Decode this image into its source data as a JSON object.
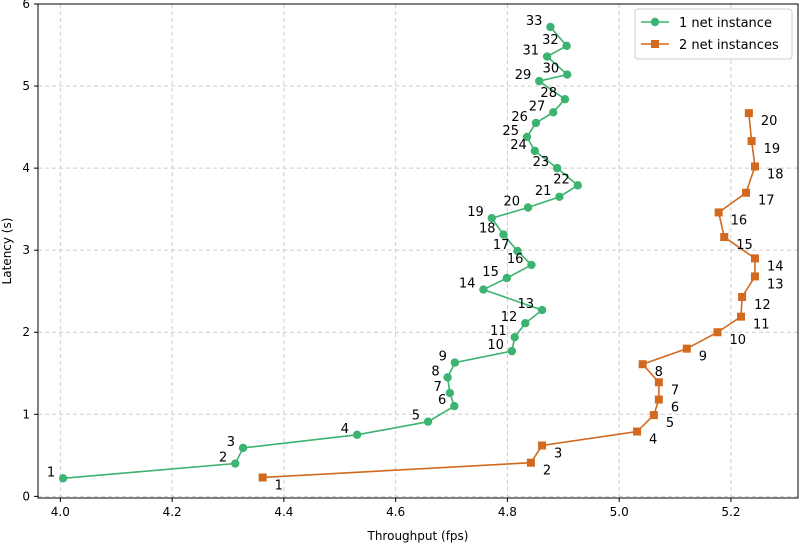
{
  "chart_data": {
    "type": "line",
    "title": "",
    "xlabel": "Throughput (fps)",
    "ylabel": "Latency (s)",
    "xlim": [
      3.96,
      5.32
    ],
    "ylim": [
      -0.02,
      6.0
    ],
    "xticks": [
      4.0,
      4.2,
      4.4,
      4.6,
      4.8,
      5.0,
      5.2
    ],
    "xtick_labels": [
      "4.0",
      "4.2",
      "4.4",
      "4.6",
      "4.8",
      "5.0",
      "5.2"
    ],
    "yticks": [
      0,
      1,
      2,
      3,
      4,
      5,
      6
    ],
    "ytick_labels": [
      "0",
      "1",
      "2",
      "3",
      "4",
      "5",
      "6"
    ],
    "grid": true,
    "legend_position": "top-right",
    "series": [
      {
        "name": "1 net instance",
        "color": "#3cb371",
        "marker": "circle",
        "points": [
          {
            "label": "1",
            "x": 4.005,
            "y": 0.22,
            "label_side": "left"
          },
          {
            "label": "2",
            "x": 4.313,
            "y": 0.4,
            "label_side": "left"
          },
          {
            "label": "3",
            "x": 4.327,
            "y": 0.59,
            "label_side": "left"
          },
          {
            "label": "4",
            "x": 4.531,
            "y": 0.75,
            "label_side": "left"
          },
          {
            "label": "5",
            "x": 4.658,
            "y": 0.91,
            "label_side": "left"
          },
          {
            "label": "6",
            "x": 4.705,
            "y": 1.1,
            "label_side": "left"
          },
          {
            "label": "7",
            "x": 4.697,
            "y": 1.26,
            "label_side": "left"
          },
          {
            "label": "8",
            "x": 4.693,
            "y": 1.45,
            "label_side": "left"
          },
          {
            "label": "9",
            "x": 4.706,
            "y": 1.63,
            "label_side": "left"
          },
          {
            "label": "10",
            "x": 4.808,
            "y": 1.77,
            "label_side": "left"
          },
          {
            "label": "11",
            "x": 4.813,
            "y": 1.94,
            "label_side": "left"
          },
          {
            "label": "12",
            "x": 4.832,
            "y": 2.11,
            "label_side": "left"
          },
          {
            "label": "13",
            "x": 4.862,
            "y": 2.27,
            "label_side": "left"
          },
          {
            "label": "14",
            "x": 4.757,
            "y": 2.52,
            "label_side": "left"
          },
          {
            "label": "15",
            "x": 4.799,
            "y": 2.66,
            "label_side": "left"
          },
          {
            "label": "16",
            "x": 4.843,
            "y": 2.82,
            "label_side": "left"
          },
          {
            "label": "17",
            "x": 4.818,
            "y": 2.99,
            "label_side": "left"
          },
          {
            "label": "18",
            "x": 4.793,
            "y": 3.19,
            "label_side": "left"
          },
          {
            "label": "19",
            "x": 4.772,
            "y": 3.39,
            "label_side": "left"
          },
          {
            "label": "20",
            "x": 4.837,
            "y": 3.52,
            "label_side": "left"
          },
          {
            "label": "21",
            "x": 4.893,
            "y": 3.65,
            "label_side": "left"
          },
          {
            "label": "22",
            "x": 4.926,
            "y": 3.79,
            "label_side": "left"
          },
          {
            "label": "23",
            "x": 4.889,
            "y": 4.0,
            "label_side": "left"
          },
          {
            "label": "24",
            "x": 4.849,
            "y": 4.21,
            "label_side": "left"
          },
          {
            "label": "25",
            "x": 4.835,
            "y": 4.38,
            "label_side": "left"
          },
          {
            "label": "26",
            "x": 4.851,
            "y": 4.55,
            "label_side": "left"
          },
          {
            "label": "27",
            "x": 4.882,
            "y": 4.68,
            "label_side": "left"
          },
          {
            "label": "28",
            "x": 4.903,
            "y": 4.84,
            "label_side": "left"
          },
          {
            "label": "29",
            "x": 4.857,
            "y": 5.06,
            "label_side": "left"
          },
          {
            "label": "30",
            "x": 4.907,
            "y": 5.14,
            "label_side": "left"
          },
          {
            "label": "31",
            "x": 4.871,
            "y": 5.36,
            "label_side": "left"
          },
          {
            "label": "32",
            "x": 4.906,
            "y": 5.49,
            "label_side": "left"
          },
          {
            "label": "33",
            "x": 4.877,
            "y": 5.72,
            "label_side": "left"
          }
        ]
      },
      {
        "name": "2 net instances",
        "color": "#d2691e",
        "marker": "square",
        "points": [
          {
            "label": "1",
            "x": 4.362,
            "y": 0.23,
            "label_side": "right"
          },
          {
            "label": "2",
            "x": 4.842,
            "y": 0.41,
            "label_side": "right"
          },
          {
            "label": "3",
            "x": 4.862,
            "y": 0.62,
            "label_side": "right"
          },
          {
            "label": "4",
            "x": 5.032,
            "y": 0.79,
            "label_side": "right"
          },
          {
            "label": "5",
            "x": 5.062,
            "y": 0.99,
            "label_side": "right"
          },
          {
            "label": "6",
            "x": 5.071,
            "y": 1.18,
            "label_side": "right"
          },
          {
            "label": "7",
            "x": 5.071,
            "y": 1.39,
            "label_side": "right"
          },
          {
            "label": "8",
            "x": 5.042,
            "y": 1.61,
            "label_side": "right"
          },
          {
            "label": "9",
            "x": 5.121,
            "y": 1.8,
            "label_side": "right"
          },
          {
            "label": "10",
            "x": 5.176,
            "y": 2.0,
            "label_side": "right"
          },
          {
            "label": "11",
            "x": 5.218,
            "y": 2.19,
            "label_side": "right"
          },
          {
            "label": "12",
            "x": 5.22,
            "y": 2.43,
            "label_side": "right"
          },
          {
            "label": "13",
            "x": 5.243,
            "y": 2.68,
            "label_side": "right"
          },
          {
            "label": "14",
            "x": 5.243,
            "y": 2.9,
            "label_side": "right"
          },
          {
            "label": "15",
            "x": 5.188,
            "y": 3.16,
            "label_side": "right"
          },
          {
            "label": "16",
            "x": 5.178,
            "y": 3.46,
            "label_side": "right"
          },
          {
            "label": "17",
            "x": 5.227,
            "y": 3.7,
            "label_side": "right"
          },
          {
            "label": "18",
            "x": 5.243,
            "y": 4.02,
            "label_side": "right"
          },
          {
            "label": "19",
            "x": 5.237,
            "y": 4.33,
            "label_side": "right"
          },
          {
            "label": "20",
            "x": 5.232,
            "y": 4.67,
            "label_side": "right"
          }
        ]
      }
    ]
  }
}
